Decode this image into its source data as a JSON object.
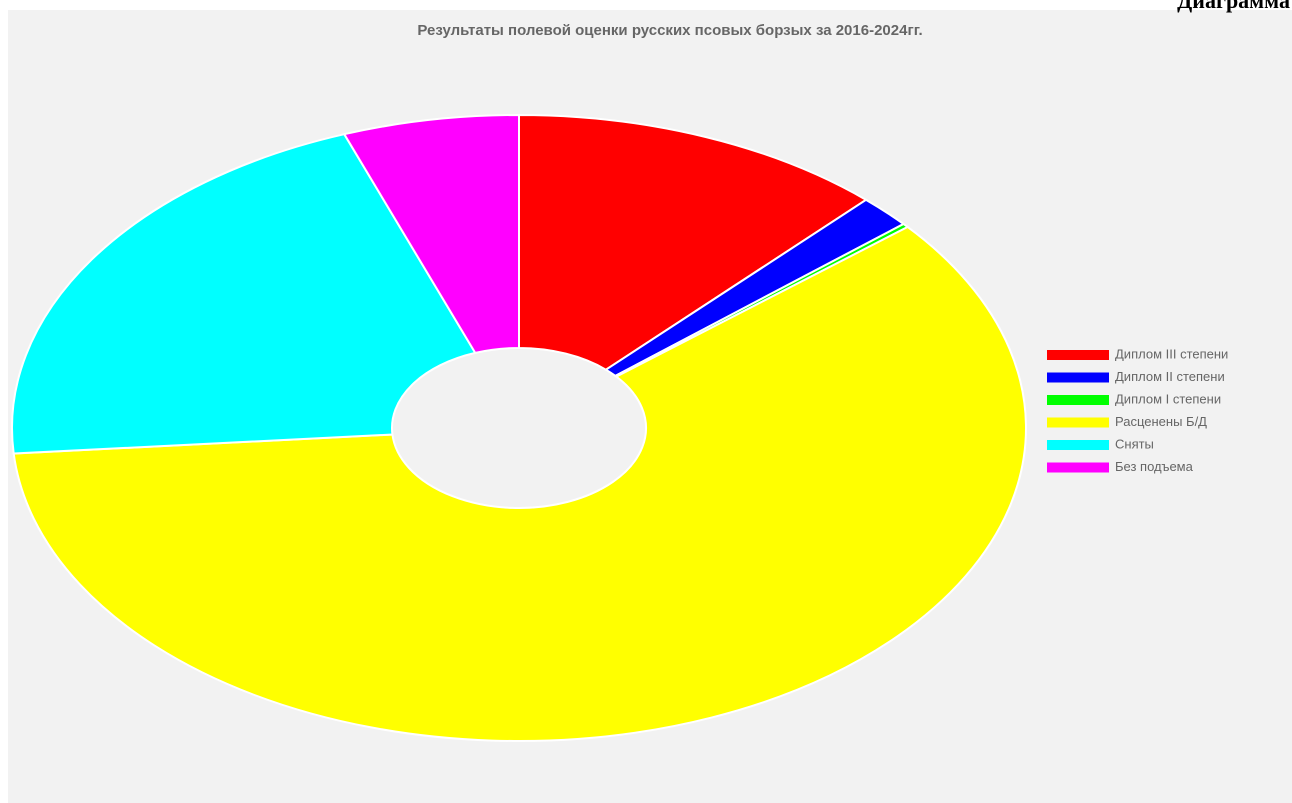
{
  "header": "Диаграмма",
  "chart_data": {
    "type": "doughnut",
    "title": "Результаты полевой оценки русских псовых борзых за 2016-2024гг.",
    "categories": [
      "Диплом III степени",
      "Диплом II степени",
      "Диплом I степени",
      "Расценены Б/Д",
      "Сняты",
      "Без подъема"
    ],
    "values": [
      12,
      1.7,
      0.2,
      59.8,
      20.7,
      5.6
    ],
    "colors": [
      "#ff0000",
      "#0000ff",
      "#00ff00",
      "#ffff00",
      "#00ffff",
      "#ff00ff"
    ],
    "legend": "right"
  }
}
